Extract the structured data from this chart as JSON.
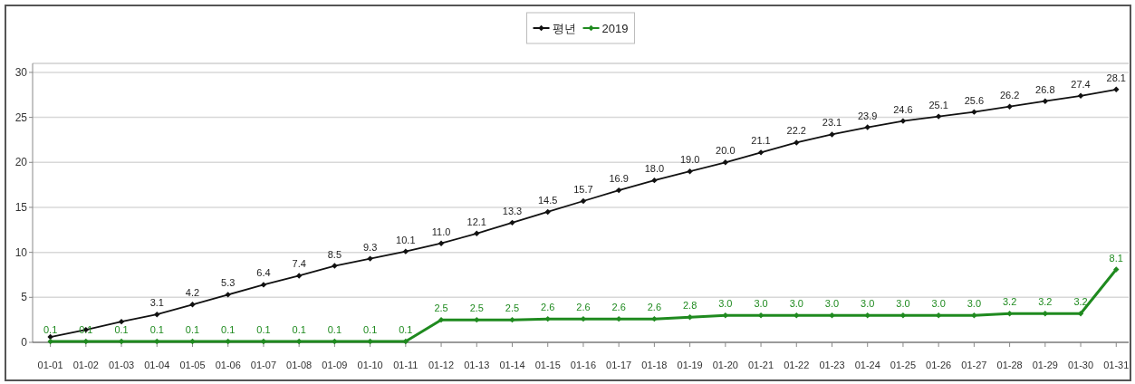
{
  "chart_data": {
    "type": "line",
    "categories": [
      "01-01",
      "01-02",
      "01-03",
      "01-04",
      "01-05",
      "01-06",
      "01-07",
      "01-08",
      "01-09",
      "01-10",
      "01-11",
      "01-12",
      "01-13",
      "01-14",
      "01-15",
      "01-16",
      "01-17",
      "01-18",
      "01-19",
      "01-20",
      "01-21",
      "01-22",
      "01-23",
      "01-24",
      "01-25",
      "01-26",
      "01-27",
      "01-28",
      "01-29",
      "01-30",
      "01-31"
    ],
    "series": [
      {
        "name": "평년",
        "color": "#111111",
        "values": [
          0.6,
          1.4,
          2.3,
          3.1,
          4.2,
          5.3,
          6.4,
          7.4,
          8.5,
          9.3,
          10.1,
          11.0,
          12.1,
          13.3,
          14.5,
          15.7,
          16.9,
          18.0,
          19.0,
          20.0,
          21.1,
          22.2,
          23.1,
          23.9,
          24.6,
          25.1,
          25.6,
          26.2,
          26.8,
          27.4,
          28.1
        ],
        "value_labels": [
          null,
          null,
          null,
          "3.1",
          "4.2",
          "5.3",
          "6.4",
          "7.4",
          "8.5",
          "9.3",
          "10.1",
          "11.0",
          "12.1",
          "13.3",
          "14.5",
          "15.7",
          "16.9",
          "18.0",
          "19.0",
          "20.0",
          "21.1",
          "22.2",
          "23.1",
          "23.9",
          "24.6",
          "25.1",
          "25.6",
          "26.2",
          "26.8",
          "27.4",
          "28.1"
        ]
      },
      {
        "name": "2019",
        "color": "#1f8a1f",
        "values": [
          0.1,
          0.1,
          0.1,
          0.1,
          0.1,
          0.1,
          0.1,
          0.1,
          0.1,
          0.1,
          0.1,
          2.5,
          2.5,
          2.5,
          2.6,
          2.6,
          2.6,
          2.6,
          2.8,
          3.0,
          3.0,
          3.0,
          3.0,
          3.0,
          3.0,
          3.0,
          3.0,
          3.2,
          3.2,
          3.2,
          8.1
        ],
        "value_labels": [
          "0.1",
          "0.1",
          "0.1",
          "0.1",
          "0.1",
          "0.1",
          "0.1",
          "0.1",
          "0.1",
          "0.1",
          "0.1",
          "2.5",
          "2.5",
          "2.5",
          "2.6",
          "2.6",
          "2.6",
          "2.6",
          "2.8",
          "3.0",
          "3.0",
          "3.0",
          "3.0",
          "3.0",
          "3.0",
          "3.0",
          "3.0",
          "3.2",
          "3.2",
          "3.2",
          "8.1"
        ]
      }
    ],
    "ylim": [
      0,
      31
    ],
    "yticks": [
      0,
      5,
      10,
      15,
      20,
      25,
      30
    ],
    "grid": "y",
    "legend": "top",
    "marker": "diamond"
  }
}
